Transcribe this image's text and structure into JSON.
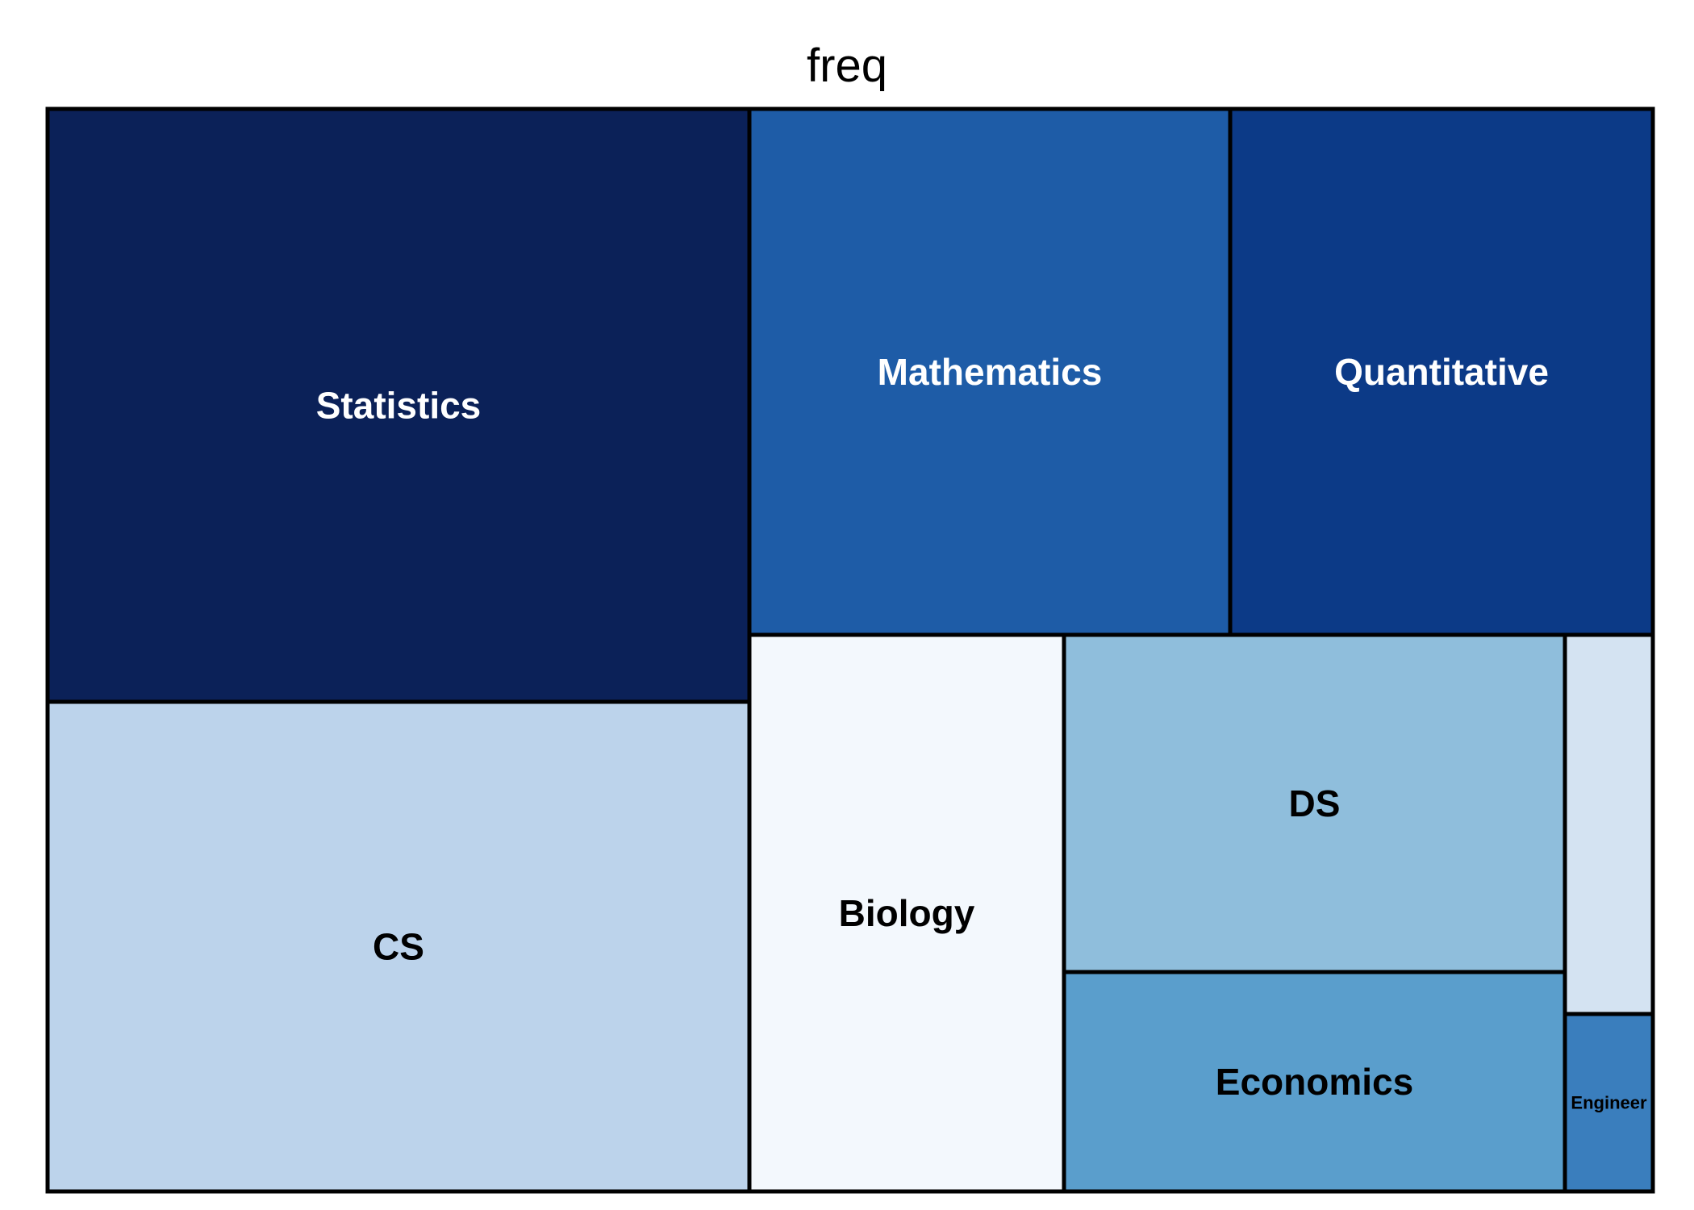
{
  "chart_data": {
    "type": "treemap",
    "title": "freq",
    "items": [
      {
        "label": "Statistics",
        "color": "#0B2158",
        "label_color": "#ffffff"
      },
      {
        "label": "CS",
        "color": "#BCD3EB",
        "label_color": "#000000"
      },
      {
        "label": "Mathematics",
        "color": "#1E5CA7",
        "label_color": "#ffffff"
      },
      {
        "label": "Quantitative",
        "color": "#0C3A87",
        "label_color": "#ffffff"
      },
      {
        "label": "Biology",
        "color": "#F3F8FD",
        "label_color": "#000000"
      },
      {
        "label": "DS",
        "color": "#8FBEDC",
        "label_color": "#000000"
      },
      {
        "label": "Economics",
        "color": "#5A9ECC",
        "label_color": "#000000"
      },
      {
        "label": "",
        "color": "#D4E3F2",
        "label_color": "#000000"
      },
      {
        "label": "Engineer",
        "color": "#3A7EBD",
        "label_color": "#000000"
      }
    ]
  }
}
